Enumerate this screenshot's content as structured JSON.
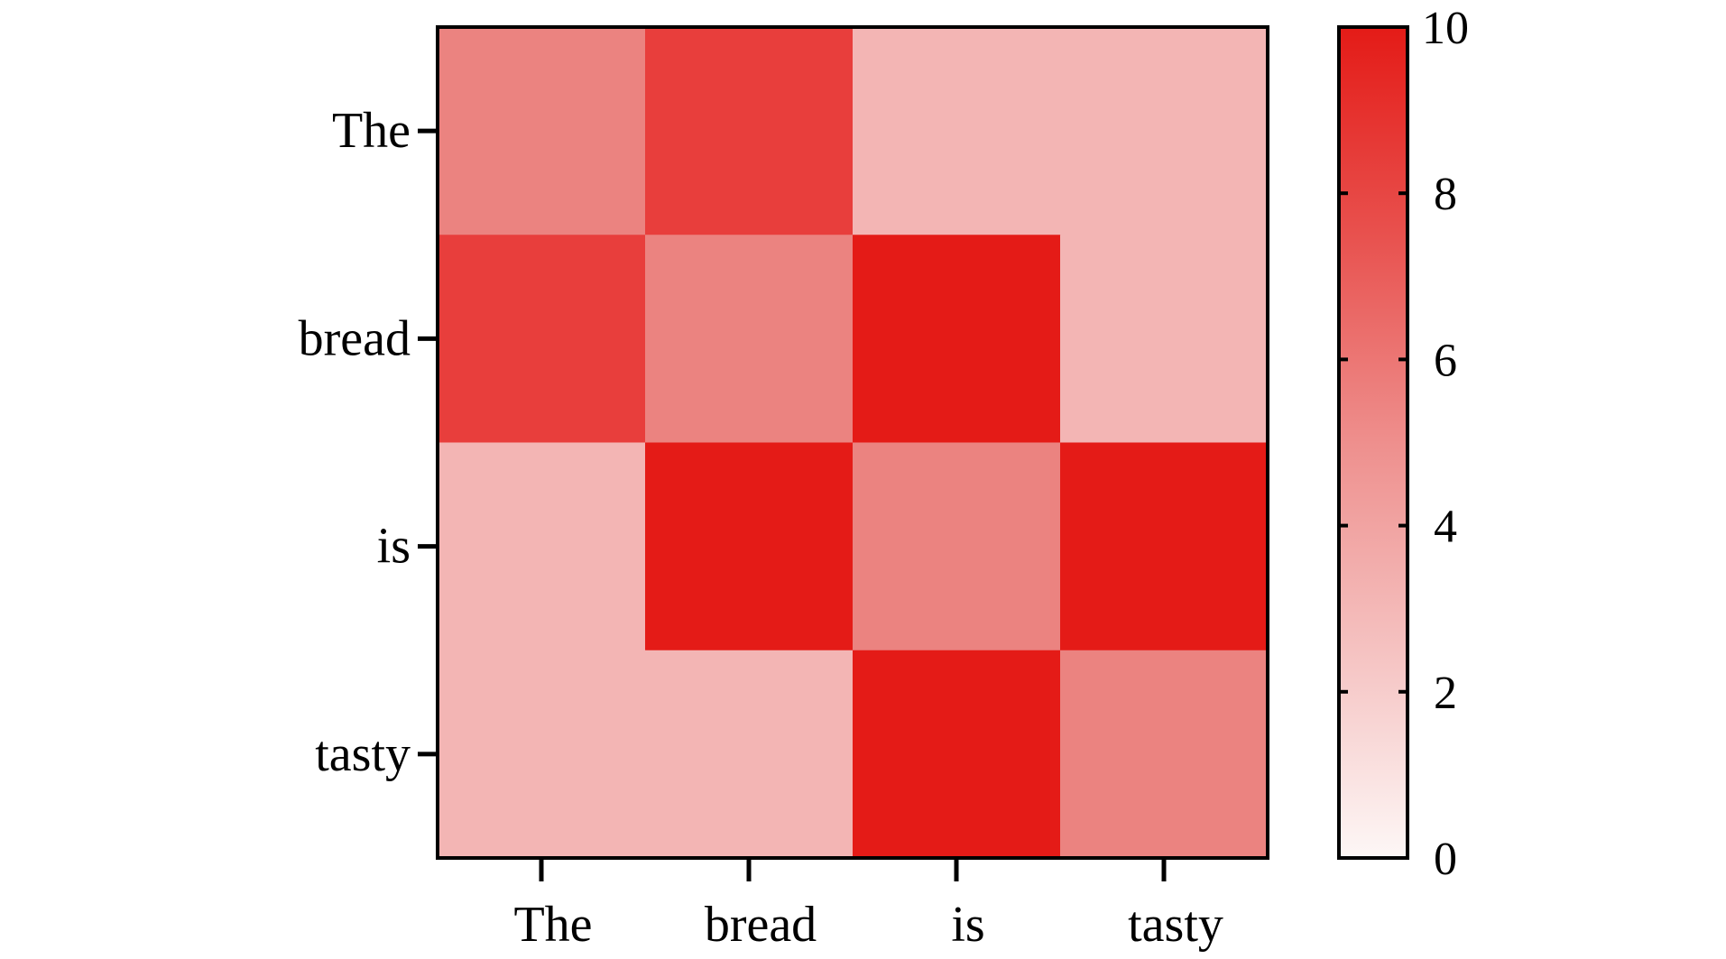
{
  "chart_data": {
    "type": "heatmap",
    "title": "",
    "xlabel": "",
    "ylabel": "",
    "x_categories": [
      "The",
      "bread",
      "is",
      "tasty"
    ],
    "y_categories": [
      "The",
      "bread",
      "is",
      "tasty"
    ],
    "values": [
      [
        5,
        8,
        3,
        3
      ],
      [
        8,
        5,
        10,
        3
      ],
      [
        3,
        10,
        5,
        10
      ],
      [
        3,
        3,
        10,
        5
      ]
    ],
    "colorbar": {
      "min": 0,
      "max": 10,
      "ticks": [
        0,
        2,
        4,
        6,
        8,
        10
      ],
      "tick_labels": [
        "0",
        "2",
        "4",
        "6",
        "8",
        "10"
      ],
      "color_low": "#fdf7f6",
      "color_high": "#e41b17"
    },
    "cell_colors": {
      "3": "#f3b5b4",
      "5": "#eb8380",
      "8": "#e83e3c",
      "10": "#e41b17"
    }
  }
}
